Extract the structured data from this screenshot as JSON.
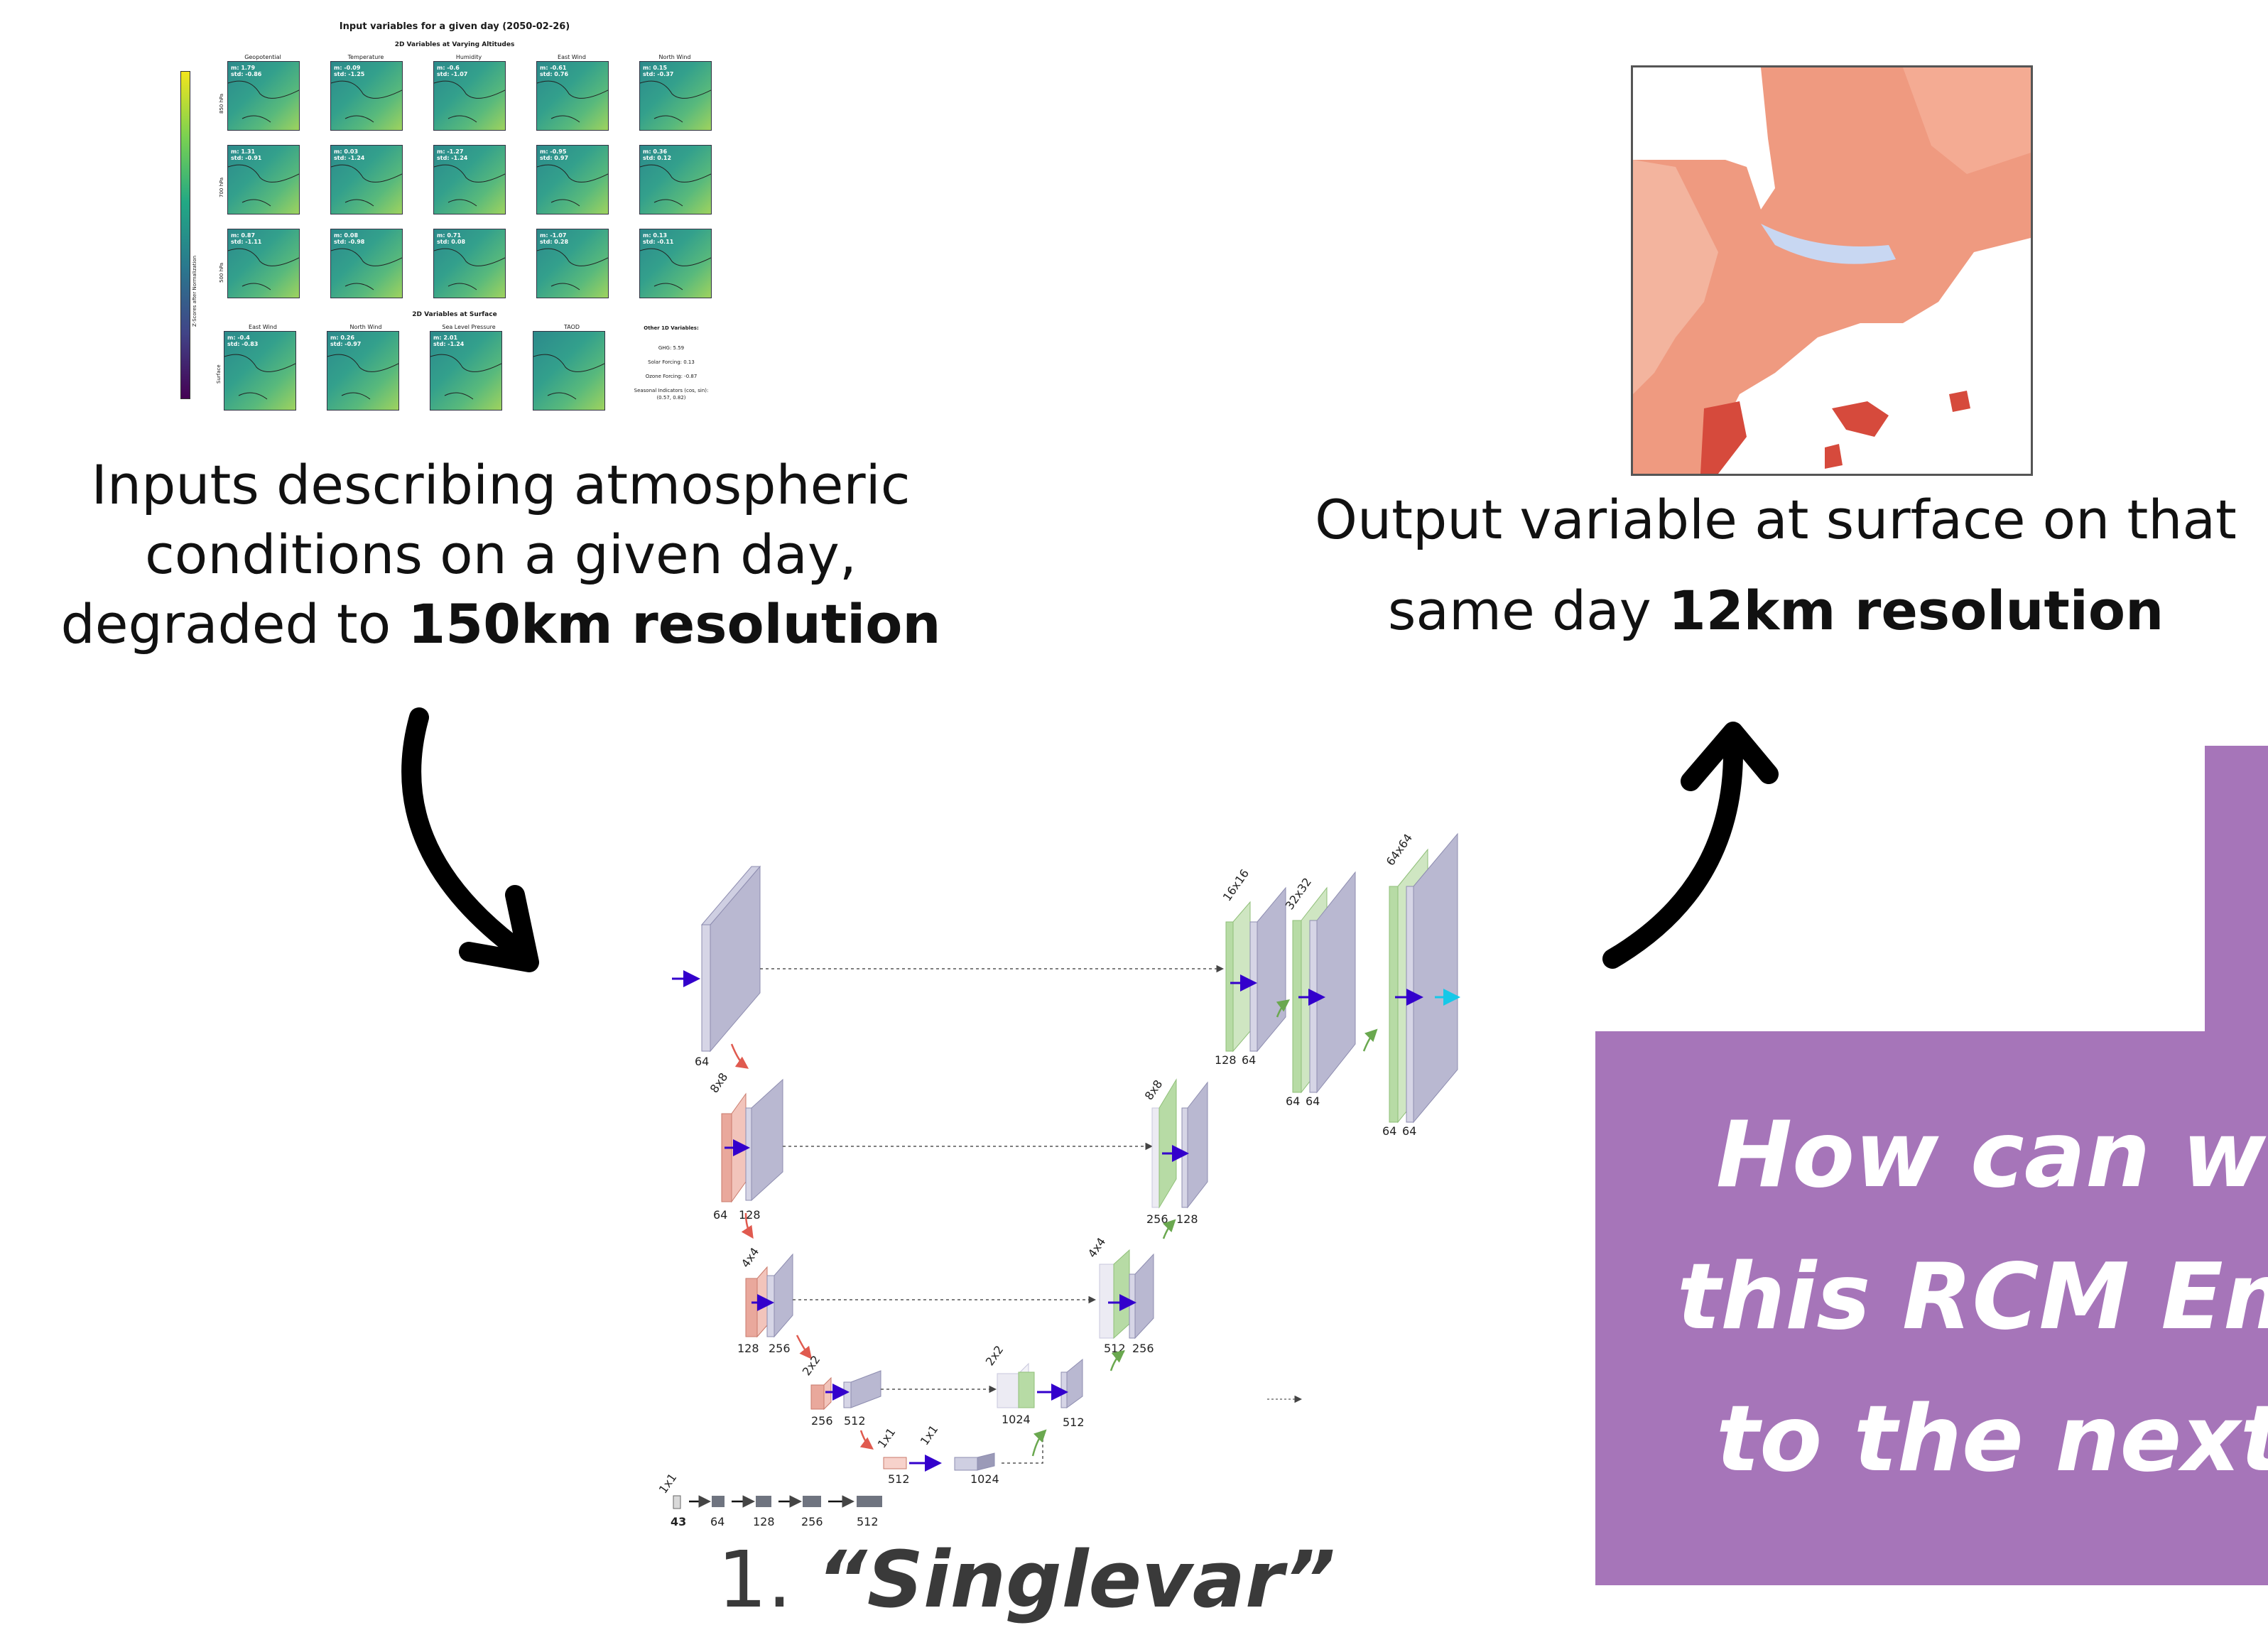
{
  "input_panel": {
    "title": "Input variables for a given day (2050-02-26)",
    "section_altitudes": "2D Variables at Varying Altitudes",
    "section_surface": "2D Variables at Surface",
    "columns": [
      "Geopotential",
      "Temperature",
      "Humidity",
      "East Wind",
      "North Wind"
    ],
    "rows": [
      "850 hPa",
      "700 hPa",
      "500 hPa"
    ],
    "stats": [
      [
        "m: 1.79\nstd: -0.86",
        "m: -0.09\nstd: -1.25",
        "m: -0.6\nstd: -1.07",
        "m: -0.61\nstd: 0.76",
        "m: 0.15\nstd: -0.37"
      ],
      [
        "m: 1.31\nstd: -0.91",
        "m: 0.03\nstd: -1.24",
        "m: -1.27\nstd: -1.24",
        "m: -0.95\nstd: 0.97",
        "m: 0.36\nstd: 0.12"
      ],
      [
        "m: 0.87\nstd: -1.11",
        "m: 0.08\nstd: -0.98",
        "m: 0.71\nstd: 0.08",
        "m: -1.07\nstd: 0.28",
        "m: 0.13\nstd: -0.11"
      ]
    ],
    "surface_columns": [
      "East Wind",
      "North Wind",
      "Sea Level Pressure",
      "TAOD"
    ],
    "surface_row": "Surface",
    "surface_stats": [
      "m: -0.4\nstd: -0.83",
      "m: 0.26\nstd: -0.97",
      "m: 2.01\nstd: -1.24",
      ""
    ],
    "colorbar_label": "Z-Scores after Normalization",
    "other_title": "Other 1D Variables:",
    "other_vars": [
      "GHG: 5.59",
      "Solar Forcing: 0.13",
      "Ozone Forcing: -0.87",
      "Seasonal Indicators (cos, sin):",
      "(0.57, 0.82)"
    ]
  },
  "input_caption": {
    "line1": "Inputs describing atmospheric",
    "line2": "conditions on a given day,",
    "line3_pre": "degraded to ",
    "line3_bold": "150km resolution"
  },
  "output_caption": {
    "line1": "Output variable at surface on that",
    "line2_pre": "same day ",
    "line2_bold": "12km resolution"
  },
  "question": {
    "line1": "How can we",
    "line2": "this RCM Em",
    "line3": "to the next"
  },
  "model_label": {
    "number": "1.",
    "name": "“Singlevar”"
  },
  "unet": {
    "encoder_sizes": [
      "8x8",
      "4x4",
      "2x2",
      "1x1"
    ],
    "decoder_sizes": [
      "1x1",
      "2x2",
      "4x4",
      "8x8",
      "16x16",
      "32x32",
      "64x64"
    ],
    "channel_labels": {
      "enc0": "64",
      "enc1": [
        "64",
        "128"
      ],
      "enc2": [
        "128",
        "256"
      ],
      "enc3": [
        "256",
        "512"
      ],
      "bottleneck": "512",
      "bottleneck_out": "1024",
      "dec3": [
        "1024",
        "512"
      ],
      "dec2": [
        "512",
        "256"
      ],
      "dec1": [
        "256",
        "128"
      ],
      "dec0": [
        "128",
        "64"
      ],
      "dec_a": [
        "64",
        "64"
      ],
      "dec_b": [
        "64",
        "64"
      ]
    },
    "vector_branch": {
      "size": "1x1",
      "values": [
        "43",
        "64",
        "128",
        "256",
        "512"
      ]
    }
  },
  "colors": {
    "purple_box": "#a675b9",
    "encoder_red": "#e9a89c",
    "decoder_green": "#b7dba5",
    "block_gray": "#b9b8d1",
    "arrow_blue": "#3300cc",
    "arrow_cyan": "#16c8e8"
  }
}
